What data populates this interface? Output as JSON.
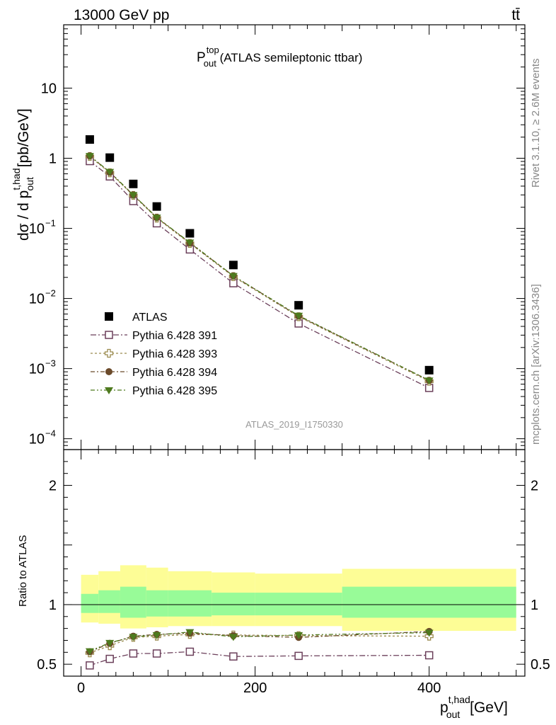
{
  "header": {
    "left": "13000 GeV pp",
    "right": "tt̄"
  },
  "title": {
    "main": "P",
    "sup": "top",
    "sub": "out",
    "rest": " (ATLAS semileptonic ttbar)"
  },
  "side_labels": {
    "rivet": "Rivet 3.1.10, ≥ 2.6M events",
    "mcplots": "mcplots.cern.ch [arXiv:1306.3436]"
  },
  "watermark": "ATLAS_2019_I1750330",
  "axes": {
    "ylabel_main": {
      "a": "dσ / d p",
      "sup": "t,had",
      "sub": "out",
      "b": " [pb/GeV]"
    },
    "ylabel_ratio": "Ratio to ATLAS",
    "xlabel": {
      "a": "p",
      "sup": "t,had",
      "sub": "out",
      "b": " [GeV]"
    }
  },
  "ticks": {
    "main_y": [
      {
        "value": 10,
        "label": "10"
      },
      {
        "value": 1,
        "label": "1"
      },
      {
        "value": 0.1,
        "base": "10",
        "exp": "−1"
      },
      {
        "value": 0.01,
        "base": "10",
        "exp": "−2"
      },
      {
        "value": 0.001,
        "base": "10",
        "exp": "−3"
      },
      {
        "value": 0.0001,
        "base": "10",
        "exp": "−4"
      }
    ],
    "ratio_y": [
      {
        "value": 0.5,
        "label": "0.5"
      },
      {
        "value": 1,
        "label": "1"
      },
      {
        "value": 2,
        "label": "2"
      }
    ],
    "x": [
      {
        "value": 0,
        "label": "0"
      },
      {
        "value": 200,
        "label": "200"
      },
      {
        "value": 400,
        "label": "400"
      }
    ]
  },
  "legend": [
    {
      "label": "ATLAS",
      "marker": "square-filled",
      "color": "#000000"
    },
    {
      "label": "Pythia 6.428 391",
      "marker": "square-open",
      "color": "#6b3f5a",
      "dash": "8,3,2,3"
    },
    {
      "label": "Pythia 6.428 393",
      "marker": "cross-open",
      "color": "#9a8a4e",
      "dash": "3,3"
    },
    {
      "label": "Pythia 6.428 394",
      "marker": "circle-filled",
      "color": "#6b4a2a",
      "dash": "6,3,2,3"
    },
    {
      "label": "Pythia 6.428 395",
      "marker": "triangle-down-filled",
      "color": "#4e7a1e",
      "dash": "6,3,2,3,2,3"
    }
  ],
  "chart_data": [
    {
      "type": "scatter",
      "title": "P_out^top (ATLAS semileptonic ttbar)",
      "xlabel": "p_out^t,had [GeV]",
      "ylabel": "dσ / d p_out^t,had [pb/GeV]",
      "yscale": "log",
      "xlim": [
        -20,
        510
      ],
      "ylim": [
        7e-05,
        80
      ],
      "x": [
        10,
        33,
        60,
        87,
        125,
        175,
        250,
        400
      ],
      "series": [
        {
          "name": "ATLAS",
          "values": [
            1.85,
            1.02,
            0.43,
            0.205,
            0.085,
            0.03,
            0.008,
            0.00095
          ]
        },
        {
          "name": "Pythia 6.428 391",
          "values": [
            0.91,
            0.55,
            0.245,
            0.118,
            0.05,
            0.0165,
            0.0044,
            0.00053
          ]
        },
        {
          "name": "Pythia 6.428 393",
          "values": [
            1.06,
            0.62,
            0.295,
            0.14,
            0.061,
            0.0205,
            0.0055,
            0.00066
          ]
        },
        {
          "name": "Pythia 6.428 394",
          "values": [
            1.08,
            0.63,
            0.3,
            0.143,
            0.062,
            0.021,
            0.0056,
            0.00068
          ]
        },
        {
          "name": "Pythia 6.428 395",
          "values": [
            1.08,
            0.64,
            0.3,
            0.143,
            0.063,
            0.021,
            0.0057,
            0.00068
          ]
        }
      ]
    },
    {
      "type": "scatter",
      "ylabel": "Ratio to ATLAS",
      "xlabel": "p_out^t,had [GeV]",
      "xlim": [
        -20,
        510
      ],
      "ylim": [
        0.4,
        2.3
      ],
      "x": [
        10,
        33,
        60,
        87,
        125,
        175,
        250,
        400
      ],
      "bins": [
        [
          0,
          20
        ],
        [
          20,
          45
        ],
        [
          45,
          75
        ],
        [
          75,
          100
        ],
        [
          100,
          150
        ],
        [
          150,
          200
        ],
        [
          200,
          300
        ],
        [
          300,
          500
        ]
      ],
      "band_stat": [
        [
          0.93,
          1.09
        ],
        [
          0.93,
          1.12
        ],
        [
          0.89,
          1.15
        ],
        [
          0.9,
          1.12
        ],
        [
          0.9,
          1.12
        ],
        [
          0.91,
          1.1
        ],
        [
          0.91,
          1.1
        ],
        [
          0.89,
          1.15
        ]
      ],
      "band_total": [
        [
          0.85,
          1.25
        ],
        [
          0.84,
          1.28
        ],
        [
          0.8,
          1.33
        ],
        [
          0.81,
          1.31
        ],
        [
          0.82,
          1.28
        ],
        [
          0.82,
          1.27
        ],
        [
          0.82,
          1.26
        ],
        [
          0.78,
          1.3
        ]
      ],
      "series": [
        {
          "name": "Pythia 6.428 391",
          "values": [
            0.49,
            0.545,
            0.59,
            0.59,
            0.605,
            0.565,
            0.57,
            0.575
          ]
        },
        {
          "name": "Pythia 6.428 393",
          "values": [
            0.595,
            0.655,
            0.725,
            0.735,
            0.75,
            0.745,
            0.74,
            0.735
          ]
        },
        {
          "name": "Pythia 6.428 394",
          "values": [
            0.605,
            0.675,
            0.735,
            0.75,
            0.76,
            0.74,
            0.725,
            0.775
          ]
        },
        {
          "name": "Pythia 6.428 395",
          "values": [
            0.61,
            0.68,
            0.73,
            0.745,
            0.77,
            0.73,
            0.745,
            0.765
          ]
        }
      ]
    }
  ]
}
